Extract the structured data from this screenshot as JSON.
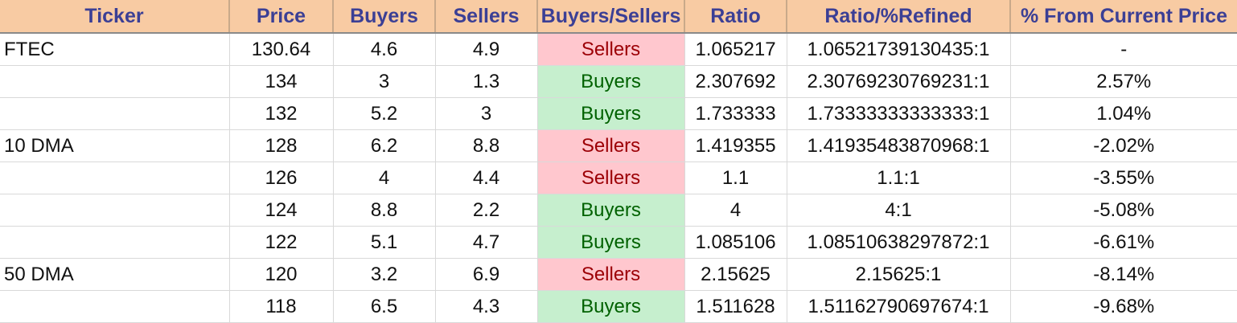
{
  "colors": {
    "header_bg": "#f8cba3",
    "header_text": "#3b3f95",
    "sellers_bg": "#ffc7ce",
    "sellers_text": "#9c0006",
    "buyers_bg": "#c6efce",
    "buyers_text": "#006100"
  },
  "columns": [
    "Ticker",
    "Price",
    "Buyers",
    "Sellers",
    "Buyers/Sellers",
    "Ratio",
    "Ratio/%Refined",
    "% From Current Price"
  ],
  "rows": [
    [
      "FTEC",
      "130.64",
      "4.6",
      "4.9",
      "Sellers",
      "1.065217",
      "1.06521739130435:1",
      "-"
    ],
    [
      "",
      "134",
      "3",
      "1.3",
      "Buyers",
      "2.307692",
      "2.30769230769231:1",
      "2.57%"
    ],
    [
      "",
      "132",
      "5.2",
      "3",
      "Buyers",
      "1.733333",
      "1.73333333333333:1",
      "1.04%"
    ],
    [
      "10 DMA",
      "128",
      "6.2",
      "8.8",
      "Sellers",
      "1.419355",
      "1.41935483870968:1",
      "-2.02%"
    ],
    [
      "",
      "126",
      "4",
      "4.4",
      "Sellers",
      "1.1",
      "1.1:1",
      "-3.55%"
    ],
    [
      "",
      "124",
      "8.8",
      "2.2",
      "Buyers",
      "4",
      "4:1",
      "-5.08%"
    ],
    [
      "",
      "122",
      "5.1",
      "4.7",
      "Buyers",
      "1.085106",
      "1.08510638297872:1",
      "-6.61%"
    ],
    [
      "50 DMA",
      "120",
      "3.2",
      "6.9",
      "Sellers",
      "2.15625",
      "2.15625:1",
      "-8.14%"
    ],
    [
      "",
      "118",
      "6.5",
      "4.3",
      "Buyers",
      "1.511628",
      "1.51162790697674:1",
      "-9.68%"
    ]
  ]
}
